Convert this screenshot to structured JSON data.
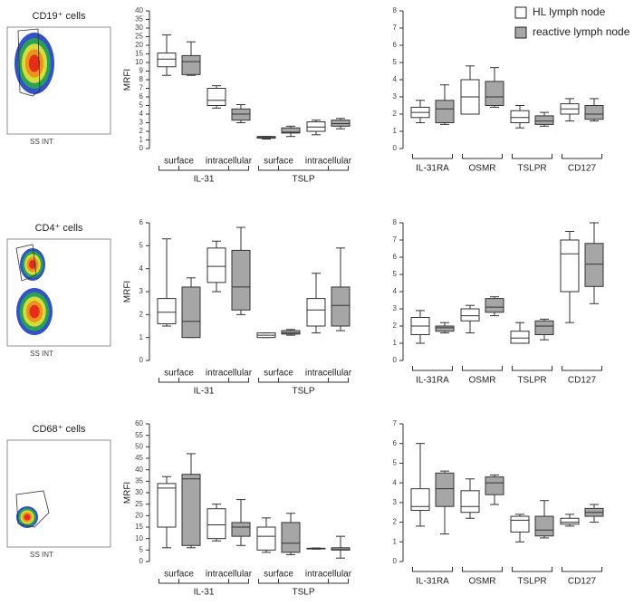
{
  "legend": [
    {
      "name": "HL lymph node",
      "color": "#ffffff"
    },
    {
      "name": "reactive lymph node",
      "color": "#a6a6a6"
    }
  ],
  "flow_panels": [
    {
      "title": "CD19⁺ cells",
      "xlabel": "SS INT"
    },
    {
      "title": "CD4⁺ cells",
      "xlabel": "SS INT"
    },
    {
      "title": "CD68⁺ cells",
      "xlabel": "SS INT"
    }
  ],
  "chart_data": [
    {
      "type": "box",
      "ylabel": "MRFI",
      "ylim": [
        0,
        40
      ],
      "yticks": [
        0,
        1,
        2,
        3,
        4,
        5,
        6,
        7,
        8,
        9,
        10,
        15,
        20,
        25,
        30,
        35,
        40
      ],
      "yscale": "segmented",
      "groups": [
        {
          "name": "IL-31",
          "categories": [
            "surface",
            "intracellular"
          ]
        },
        {
          "name": "TSLP",
          "categories": [
            "surface",
            "intracellular"
          ]
        }
      ],
      "series": [
        {
          "values": [
            {
              "min": 8.5,
              "q1": 9.5,
              "median": 12,
              "q3": 15.5,
              "max": 26
            },
            {
              "min": 4.7,
              "q1": 5.0,
              "median": 5.6,
              "q3": 7.0,
              "max": 7.3
            },
            {
              "min": 1.1,
              "q1": 1.2,
              "median": 1.3,
              "q3": 1.4,
              "max": 1.4
            },
            {
              "min": 1.6,
              "q1": 2.0,
              "median": 2.5,
              "q3": 3.1,
              "max": 3.3
            }
          ]
        },
        {
          "values": [
            {
              "min": 8.5,
              "q1": 8.6,
              "median": 10.5,
              "q3": 14,
              "max": 22
            },
            {
              "min": 3.0,
              "q1": 3.3,
              "median": 4.0,
              "q3": 4.6,
              "max": 5.1
            },
            {
              "min": 1.4,
              "q1": 1.8,
              "median": 1.9,
              "q3": 2.4,
              "max": 2.6
            },
            {
              "min": 2.3,
              "q1": 2.6,
              "median": 2.9,
              "q3": 3.3,
              "max": 3.5
            }
          ]
        }
      ]
    },
    {
      "type": "box",
      "ylim": [
        0,
        8
      ],
      "yticks": [
        0,
        1,
        2,
        3,
        4,
        5,
        6,
        7,
        8
      ],
      "categories": [
        "IL-31RA",
        "OSMR",
        "TSLPR",
        "CD127"
      ],
      "series": [
        {
          "values": [
            {
              "min": 1.5,
              "q1": 1.8,
              "median": 2.1,
              "q3": 2.4,
              "max": 2.8
            },
            {
              "min": 2.0,
              "q1": 2.0,
              "median": 3.0,
              "q3": 4.0,
              "max": 4.8
            },
            {
              "min": 1.2,
              "q1": 1.5,
              "median": 1.8,
              "q3": 2.2,
              "max": 2.5
            },
            {
              "min": 1.6,
              "q1": 2.0,
              "median": 2.3,
              "q3": 2.6,
              "max": 2.9
            }
          ]
        },
        {
          "values": [
            {
              "min": 1.4,
              "q1": 1.5,
              "median": 2.3,
              "q3": 2.8,
              "max": 3.7
            },
            {
              "min": 2.4,
              "q1": 2.5,
              "median": 3.0,
              "q3": 3.9,
              "max": 4.7
            },
            {
              "min": 1.3,
              "q1": 1.4,
              "median": 1.6,
              "q3": 1.9,
              "max": 2.1
            },
            {
              "min": 1.6,
              "q1": 1.7,
              "median": 2.0,
              "q3": 2.5,
              "max": 2.9
            }
          ]
        }
      ]
    },
    {
      "type": "box",
      "ylabel": "MRFI",
      "ylim": [
        0,
        6
      ],
      "yticks": [
        0,
        1,
        2,
        3,
        4,
        5,
        6
      ],
      "groups": [
        {
          "name": "IL-31",
          "categories": [
            "surface",
            "intracellular"
          ]
        },
        {
          "name": "TSLP",
          "categories": [
            "surface",
            "intracellular"
          ]
        }
      ],
      "series": [
        {
          "values": [
            {
              "min": 1.5,
              "q1": 1.6,
              "median": 2.1,
              "q3": 2.7,
              "max": 5.3
            },
            {
              "min": 3.0,
              "q1": 3.4,
              "median": 4.1,
              "q3": 4.9,
              "max": 5.2
            },
            {
              "min": 1.0,
              "q1": 1.0,
              "median": 1.1,
              "q3": 1.2,
              "max": 1.2
            },
            {
              "min": 1.2,
              "q1": 1.5,
              "median": 2.2,
              "q3": 2.7,
              "max": 3.8
            }
          ]
        },
        {
          "values": [
            {
              "min": 1.0,
              "q1": 1.0,
              "median": 1.7,
              "q3": 3.2,
              "max": 3.6
            },
            {
              "min": 2.0,
              "q1": 2.2,
              "median": 3.2,
              "q3": 4.8,
              "max": 5.8
            },
            {
              "min": 1.1,
              "q1": 1.15,
              "median": 1.2,
              "q3": 1.3,
              "max": 1.35
            },
            {
              "min": 1.3,
              "q1": 1.5,
              "median": 2.4,
              "q3": 3.2,
              "max": 4.9
            }
          ]
        }
      ]
    },
    {
      "type": "box",
      "ylim": [
        0,
        8
      ],
      "yticks": [
        0,
        1,
        2,
        3,
        4,
        5,
        6,
        7,
        8
      ],
      "categories": [
        "IL-31RA",
        "OSMR",
        "TSLPR",
        "CD127"
      ],
      "series": [
        {
          "values": [
            {
              "min": 1.0,
              "q1": 1.5,
              "median": 2.0,
              "q3": 2.5,
              "max": 2.9
            },
            {
              "min": 1.6,
              "q1": 2.3,
              "median": 2.6,
              "q3": 3.0,
              "max": 3.2
            },
            {
              "min": 1.0,
              "q1": 1.0,
              "median": 1.3,
              "q3": 1.7,
              "max": 2.2
            },
            {
              "min": 2.2,
              "q1": 4.0,
              "median": 6.2,
              "q3": 7.0,
              "max": 7.5
            }
          ]
        },
        {
          "values": [
            {
              "min": 1.6,
              "q1": 1.7,
              "median": 1.9,
              "q3": 2.0,
              "max": 2.2
            },
            {
              "min": 2.6,
              "q1": 2.8,
              "median": 3.1,
              "q3": 3.6,
              "max": 3.7
            },
            {
              "min": 1.2,
              "q1": 1.5,
              "median": 2.0,
              "q3": 2.3,
              "max": 2.4
            },
            {
              "min": 3.3,
              "q1": 4.3,
              "median": 5.6,
              "q3": 6.8,
              "max": 8.0
            }
          ]
        }
      ]
    },
    {
      "type": "box",
      "ylabel": "MRFI",
      "ylim": [
        0,
        60
      ],
      "yticks": [
        0,
        5,
        10,
        15,
        20,
        25,
        30,
        35,
        40,
        45,
        50,
        55,
        60
      ],
      "groups": [
        {
          "name": "IL-31",
          "categories": [
            "surface",
            "intracellular"
          ]
        },
        {
          "name": "TSLP",
          "categories": [
            "surface",
            "intracellular"
          ]
        }
      ],
      "series": [
        {
          "values": [
            {
              "min": 6,
              "q1": 15,
              "median": 32,
              "q3": 34,
              "max": 37
            },
            {
              "min": 9,
              "q1": 10,
              "median": 16,
              "q3": 23,
              "max": 25
            },
            {
              "min": 4,
              "q1": 5,
              "median": 11,
              "q3": 15,
              "max": 19
            },
            {
              "min": 5.4,
              "q1": 5.5,
              "median": 5.6,
              "q3": 5.8,
              "max": 5.9
            }
          ]
        },
        {
          "values": [
            {
              "min": 6,
              "q1": 7,
              "median": 36,
              "q3": 38,
              "max": 47
            },
            {
              "min": 7,
              "q1": 11,
              "median": 15,
              "q3": 17,
              "max": 27
            },
            {
              "min": 3,
              "q1": 4,
              "median": 8,
              "q3": 17,
              "max": 21
            },
            {
              "min": 1.5,
              "q1": 5,
              "median": 5.2,
              "q3": 6,
              "max": 11
            }
          ]
        }
      ]
    },
    {
      "type": "box",
      "ylim": [
        0,
        7
      ],
      "yticks": [
        0,
        1,
        2,
        3,
        4,
        5,
        6,
        7
      ],
      "categories": [
        "IL-31RA",
        "OSMR",
        "TSLPR",
        "CD127"
      ],
      "series": [
        {
          "values": [
            {
              "min": 1.8,
              "q1": 2.6,
              "median": 2.8,
              "q3": 3.7,
              "max": 6.0
            },
            {
              "min": 2.2,
              "q1": 2.5,
              "median": 2.8,
              "q3": 3.6,
              "max": 4.2
            },
            {
              "min": 1.0,
              "q1": 1.5,
              "median": 2.1,
              "q3": 2.3,
              "max": 2.4
            },
            {
              "min": 1.8,
              "q1": 1.9,
              "median": 2.0,
              "q3": 2.2,
              "max": 2.4
            }
          ]
        },
        {
          "values": [
            {
              "min": 1.4,
              "q1": 2.8,
              "median": 3.7,
              "q3": 4.5,
              "max": 4.6
            },
            {
              "min": 2.9,
              "q1": 3.4,
              "median": 4.0,
              "q3": 4.3,
              "max": 4.4
            },
            {
              "min": 1.2,
              "q1": 1.3,
              "median": 1.6,
              "q3": 2.3,
              "max": 3.1
            },
            {
              "min": 2.0,
              "q1": 2.3,
              "median": 2.5,
              "q3": 2.7,
              "max": 2.9
            }
          ]
        }
      ]
    }
  ]
}
